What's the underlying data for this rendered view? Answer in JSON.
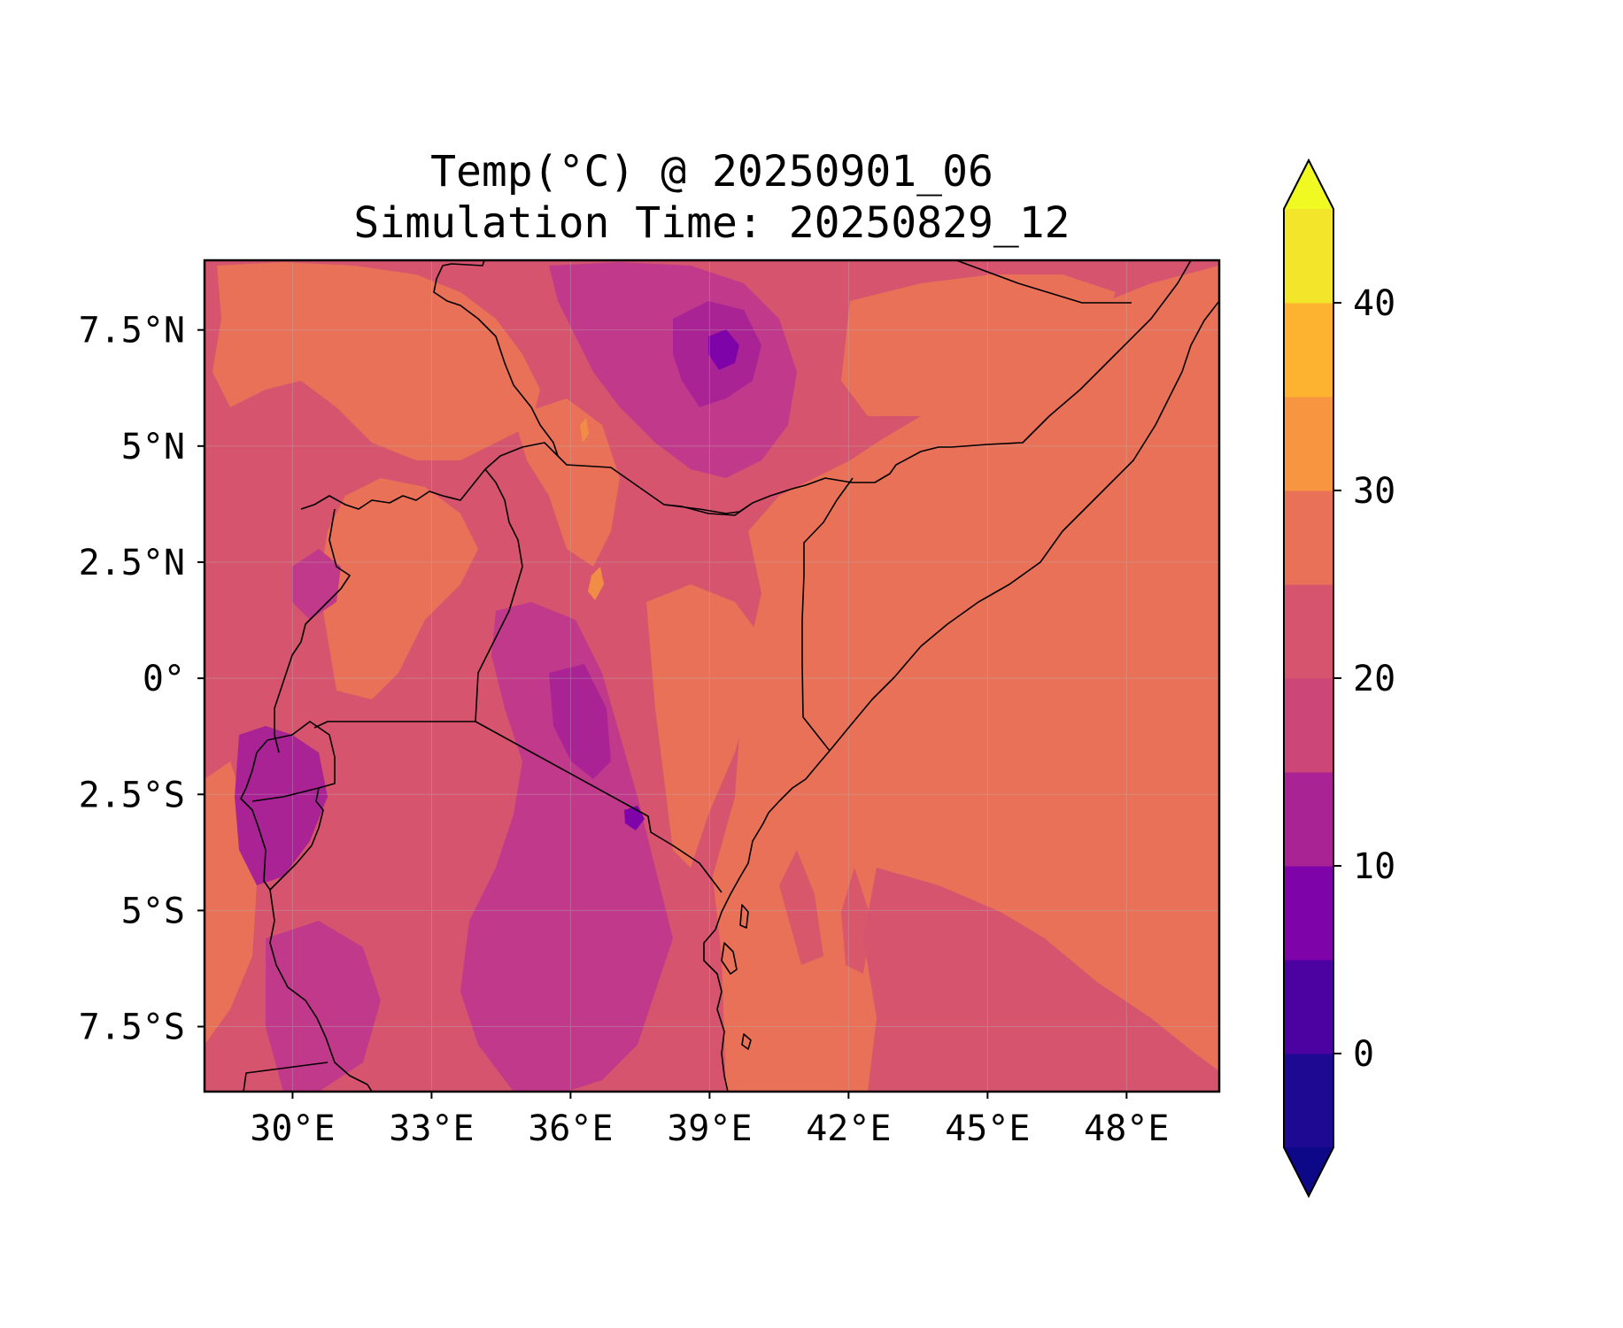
{
  "map": {
    "title": "Temp(°C) @ 20250901_06",
    "subtitle": "Simulation Time: 20250829_12",
    "x_ticks": [
      "30°E",
      "33°E",
      "36°E",
      "39°E",
      "42°E",
      "45°E",
      "48°E"
    ],
    "y_ticks": [
      "7.5°N",
      "5°N",
      "2.5°N",
      "0°",
      "2.5°S",
      "5°S",
      "7.5°S"
    ],
    "extent": {
      "lon": [
        28.1,
        50
      ],
      "lat": [
        -8.9,
        9
      ]
    },
    "gridlines": true,
    "colormap": "plasma"
  },
  "colorbar": {
    "ticks": [
      "0",
      "10",
      "20",
      "30",
      "40"
    ],
    "extend": "both",
    "range": [
      -5,
      45
    ],
    "levels": [
      -5,
      0,
      5,
      10,
      15,
      20,
      25,
      30,
      35,
      40,
      45
    ],
    "colors": [
      "#1d0992",
      "#4c02a1",
      "#7e03a8",
      "#a92395",
      "#cc4778",
      "#d6546d",
      "#e97158",
      "#f89540",
      "#fdb32f",
      "#f3e52a"
    ],
    "under_color": "#0d0887",
    "over_color": "#f0f921"
  },
  "field_colors": {
    "t15": "#a92395",
    "t18": "#c0398a",
    "t21": "#d6546d",
    "t24": "#e97158",
    "t28": "#f08c45",
    "t10": "#7e03a8"
  }
}
